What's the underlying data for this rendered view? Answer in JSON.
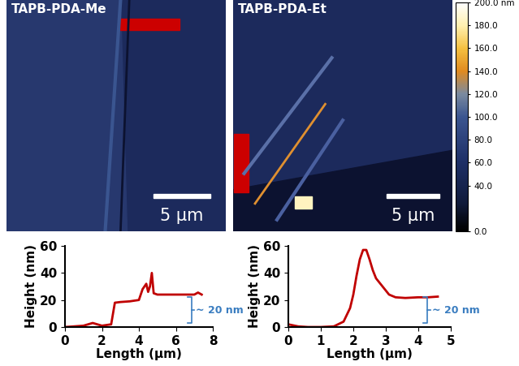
{
  "images": [
    {
      "title": "TAPB-PDA-Me",
      "scale_bar": "5 µm"
    },
    {
      "title": "TAPB-PDA-Et",
      "scale_bar": "5 µm"
    }
  ],
  "colorbar": {
    "ylim": [
      0,
      200
    ],
    "yticks": [
      {
        "value": 0,
        "label": "0.0"
      },
      {
        "value": 40,
        "label": "40.0"
      },
      {
        "value": 60,
        "label": "60.0"
      },
      {
        "value": 80,
        "label": "80.0"
      },
      {
        "value": 100,
        "label": "100.0"
      },
      {
        "value": 120,
        "label": "120.0"
      },
      {
        "value": 140,
        "label": "140.0"
      },
      {
        "value": 160,
        "label": "160.0"
      },
      {
        "value": 180,
        "label": "180.0"
      },
      {
        "value": 200,
        "label": "200.0 nm"
      }
    ]
  },
  "chart_data": [
    {
      "type": "line",
      "x_label": "Length (µm)",
      "y_label": "Height (nm)",
      "annotation": "~ 20 nm",
      "x": [
        0,
        0.5,
        1.0,
        1.5,
        2.0,
        2.5,
        2.7,
        3.0,
        3.5,
        4.0,
        4.2,
        4.4,
        4.5,
        4.6,
        4.7,
        4.8,
        5.0,
        5.5,
        6.0,
        6.5,
        7.0,
        7.2,
        7.4
      ],
      "values": [
        0,
        0.5,
        1,
        3,
        1,
        2,
        18,
        18.5,
        19,
        20,
        28,
        32,
        26,
        30,
        40,
        25,
        24,
        24,
        24,
        24,
        24,
        25.5,
        24
      ],
      "color": "#c00000",
      "xlim": [
        0,
        8
      ],
      "ylim": [
        0,
        60
      ],
      "xticks": [
        0,
        2,
        4,
        6,
        8
      ],
      "yticks": [
        0,
        20,
        40,
        60
      ]
    },
    {
      "type": "line",
      "x_label": "Length (µm)",
      "y_label": "Height (nm)",
      "annotation": "~ 20 nm",
      "x": [
        0,
        0.3,
        0.6,
        1.0,
        1.4,
        1.7,
        1.9,
        2.0,
        2.1,
        2.2,
        2.3,
        2.4,
        2.5,
        2.6,
        2.7,
        2.8,
        2.9,
        3.1,
        3.3,
        3.6,
        4.0,
        4.3,
        4.6
      ],
      "values": [
        2,
        0.5,
        0,
        0,
        0.5,
        4,
        14,
        24,
        38,
        50,
        57,
        57,
        50,
        42,
        36,
        33,
        30,
        24,
        22,
        21.5,
        22,
        22,
        22.5
      ],
      "color": "#c00000",
      "xlim": [
        0,
        5
      ],
      "ylim": [
        0,
        60
      ],
      "xticks": [
        0,
        1,
        2,
        3,
        4,
        5
      ],
      "yticks": [
        0,
        20,
        40,
        60
      ]
    }
  ]
}
